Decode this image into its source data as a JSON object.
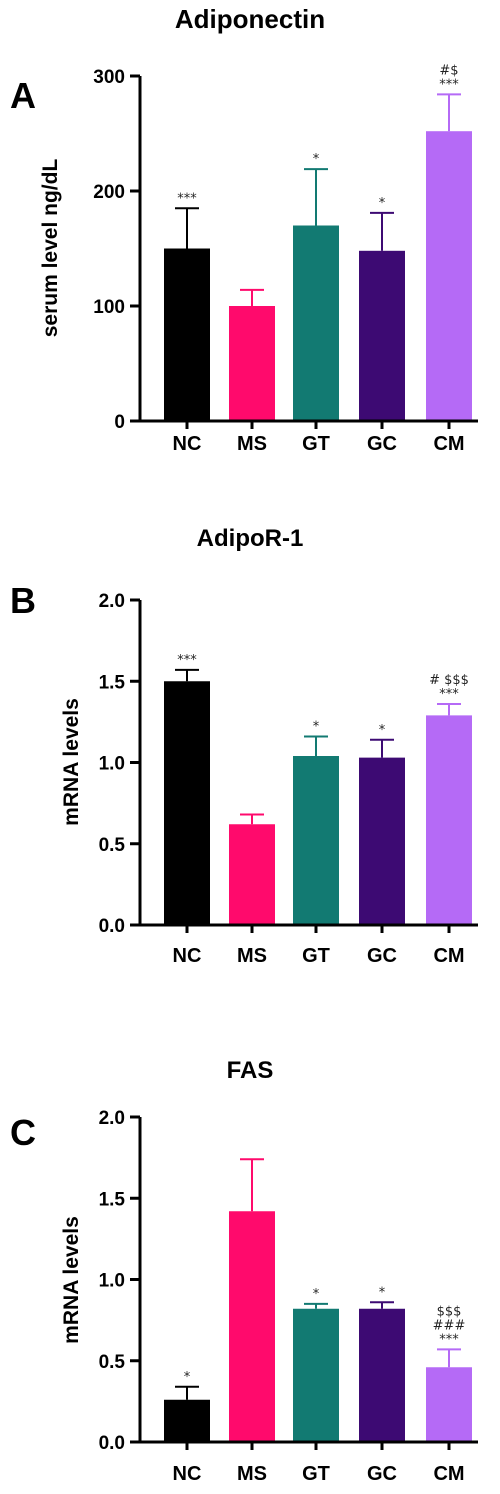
{
  "colors": {
    "NC": "#000000",
    "MS": "#ff0a6c",
    "GT": "#127a72",
    "GC": "#3d0a73",
    "CM": "#b56af6"
  },
  "chart_data": [
    {
      "type": "bar",
      "panel": "A",
      "title": "Adiponectin",
      "ylabel": "serum level ng/dL",
      "xlabel": "",
      "ylim": [
        0,
        300
      ],
      "yticks": [
        "0",
        "100",
        "200",
        "300"
      ],
      "categories": [
        "NC",
        "MS",
        "GT",
        "GC",
        "CM"
      ],
      "values": [
        150,
        100,
        170,
        148,
        252
      ],
      "errors": [
        35,
        14,
        49,
        33,
        32
      ],
      "annotations": [
        [
          "***"
        ],
        [],
        [
          "*"
        ],
        [
          "*"
        ],
        [
          "#$",
          "***"
        ]
      ],
      "grid": false,
      "legend": "none"
    },
    {
      "type": "bar",
      "panel": "B",
      "title": "AdipoR-1",
      "ylabel": "mRNA levels",
      "xlabel": "",
      "ylim": [
        0,
        2
      ],
      "yticks": [
        "0.0",
        "0.5",
        "1.0",
        "1.5",
        "2.0"
      ],
      "categories": [
        "NC",
        "MS",
        "GT",
        "GC",
        "CM"
      ],
      "values": [
        1.5,
        0.62,
        1.04,
        1.03,
        1.29
      ],
      "errors": [
        0.07,
        0.06,
        0.12,
        0.11,
        0.07
      ],
      "annotations": [
        [
          "***"
        ],
        [],
        [
          "*"
        ],
        [
          "*"
        ],
        [
          "# $$$",
          "***"
        ]
      ],
      "grid": false,
      "legend": "none"
    },
    {
      "type": "bar",
      "panel": "C",
      "title": "FAS",
      "ylabel": "mRNA levels",
      "xlabel": "",
      "ylim": [
        0,
        2
      ],
      "yticks": [
        "0.0",
        "0.5",
        "1.0",
        "1.5",
        "2.0"
      ],
      "categories": [
        "NC",
        "MS",
        "GT",
        "GC",
        "CM"
      ],
      "values": [
        0.26,
        1.42,
        0.82,
        0.82,
        0.46
      ],
      "errors": [
        0.08,
        0.32,
        0.03,
        0.04,
        0.11
      ],
      "annotations": [
        [
          "*"
        ],
        [],
        [
          "*"
        ],
        [
          "*"
        ],
        [
          "$$$",
          "###",
          "***"
        ]
      ],
      "grid": false,
      "legend": "none"
    }
  ]
}
